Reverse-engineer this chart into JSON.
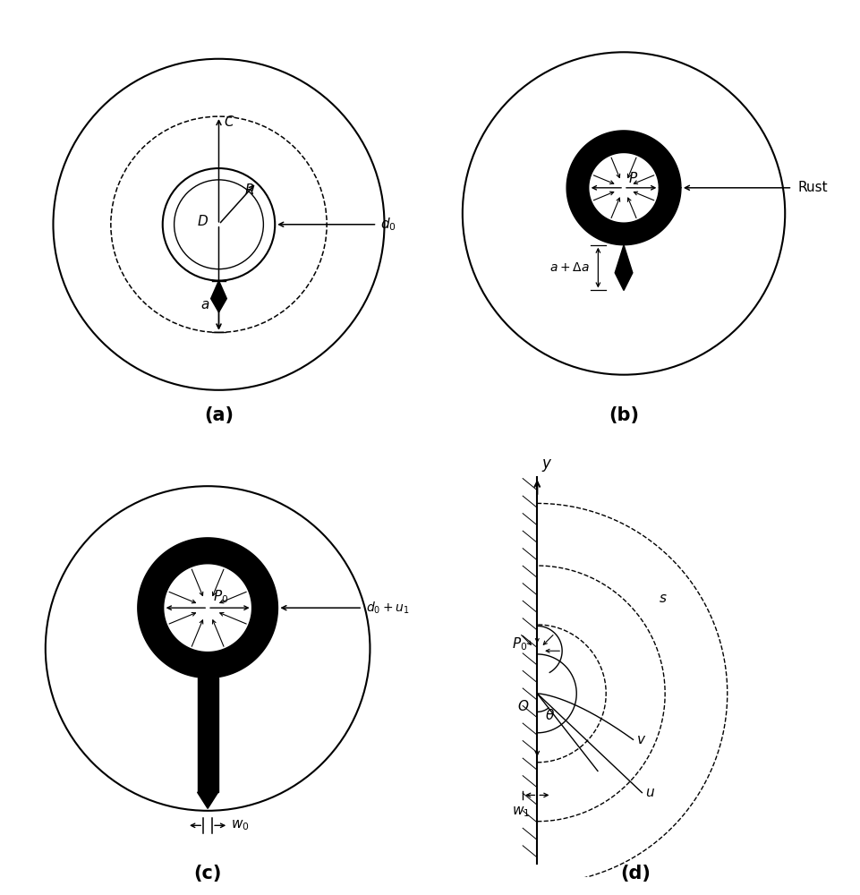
{
  "bg_color": "#ffffff",
  "fig_w": 9.62,
  "fig_h": 10.0,
  "dpi": 100,
  "panel_labels": [
    "(a)",
    "(b)",
    "(c)",
    "(d)"
  ],
  "panel_label_fontsize": 15,
  "fs": 11
}
